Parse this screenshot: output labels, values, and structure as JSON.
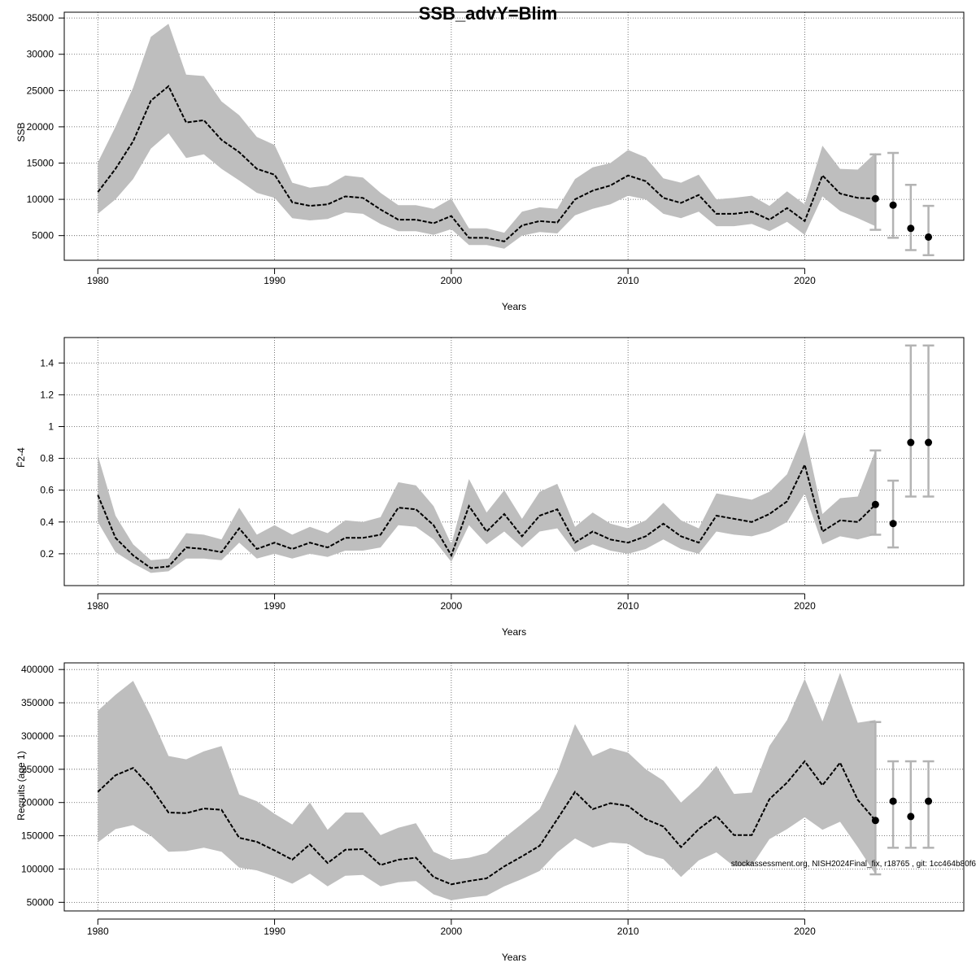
{
  "figure": {
    "title": "SSB_advY=Blim",
    "footnote": "stockassessment.org, NISH2024Final_fix, r18765 , git: 1cc464b80f6"
  },
  "chart_data": [
    {
      "type": "line",
      "xlabel": "Years",
      "ylabel": "SSB",
      "xlim": [
        1978.1,
        2029.0
      ],
      "ylim": [
        1600,
        35800
      ],
      "xticks": [
        1980,
        1990,
        2000,
        2010,
        2020
      ],
      "yticks": [
        5000,
        10000,
        15000,
        20000,
        25000,
        30000,
        35000
      ],
      "grid": true,
      "series": [
        {
          "x": [
            1980,
            1981,
            1982,
            1983,
            1984,
            1985,
            1986,
            1987,
            1988,
            1989,
            1990,
            1991,
            1992,
            1993,
            1994,
            1995,
            1996,
            1997,
            1998,
            1999,
            2000,
            2001,
            2002,
            2003,
            2004,
            2005,
            2006,
            2007,
            2008,
            2009,
            2010,
            2011,
            2012,
            2013,
            2014,
            2015,
            2016,
            2017,
            2018,
            2019,
            2020,
            2021,
            2022,
            2023,
            2024
          ],
          "estimate": [
            11000,
            14200,
            18000,
            23600,
            25600,
            20600,
            20900,
            18200,
            16500,
            14200,
            13400,
            9600,
            9100,
            9300,
            10400,
            10200,
            8600,
            7200,
            7200,
            6700,
            7700,
            4700,
            4700,
            4200,
            6400,
            7000,
            6800,
            10000,
            11200,
            11900,
            13300,
            12500,
            10200,
            9500,
            10600,
            8000,
            8000,
            8300,
            7200,
            8800,
            7000,
            13300,
            10800,
            10200,
            10100
          ],
          "lower": [
            8000,
            10000,
            12800,
            17000,
            19100,
            15700,
            16200,
            14200,
            12600,
            10900,
            10200,
            7400,
            7100,
            7300,
            8200,
            8000,
            6600,
            5600,
            5600,
            5100,
            5900,
            3700,
            3700,
            3200,
            5000,
            5500,
            5300,
            7800,
            8700,
            9300,
            10500,
            10000,
            8000,
            7400,
            8300,
            6300,
            6300,
            6600,
            5600,
            6900,
            5100,
            10400,
            8400,
            7400,
            6300
          ],
          "upper": [
            15100,
            20000,
            25400,
            32400,
            34200,
            27200,
            27000,
            23500,
            21600,
            18600,
            17500,
            12300,
            11600,
            11900,
            13300,
            13000,
            10900,
            9200,
            9200,
            8700,
            10100,
            6000,
            6000,
            5400,
            8300,
            8900,
            8700,
            12800,
            14400,
            15000,
            16800,
            15800,
            12900,
            12300,
            13400,
            10000,
            10200,
            10500,
            9100,
            11100,
            9300,
            17400,
            14200,
            14100,
            16400
          ]
        }
      ],
      "forecast": [
        {
          "x": 2024,
          "median": 10100,
          "lower": 5800,
          "upper": 16200
        },
        {
          "x": 2025,
          "median": 9200,
          "lower": 4700,
          "upper": 16400
        },
        {
          "x": 2026,
          "median": 6000,
          "lower": 3000,
          "upper": 12000
        },
        {
          "x": 2027,
          "median": 4800,
          "lower": 2300,
          "upper": 9100
        }
      ]
    },
    {
      "type": "line",
      "xlabel": "Years",
      "ylabel": "F̄2-4",
      "xlim": [
        1978.1,
        2029.0
      ],
      "ylim": [
        0.0,
        1.56
      ],
      "xticks": [
        1980,
        1990,
        2000,
        2010,
        2020
      ],
      "yticks": [
        0.2,
        0.4,
        0.6,
        0.8,
        1.0,
        1.2,
        1.4
      ],
      "grid": true,
      "series": [
        {
          "x": [
            1980,
            1981,
            1982,
            1983,
            1984,
            1985,
            1986,
            1987,
            1988,
            1989,
            1990,
            1991,
            1992,
            1993,
            1994,
            1995,
            1996,
            1997,
            1998,
            1999,
            2000,
            2001,
            2002,
            2003,
            2004,
            2005,
            2006,
            2007,
            2008,
            2009,
            2010,
            2011,
            2012,
            2013,
            2014,
            2015,
            2016,
            2017,
            2018,
            2019,
            2020,
            2021,
            2022,
            2023,
            2024
          ],
          "estimate": [
            0.57,
            0.3,
            0.19,
            0.11,
            0.12,
            0.24,
            0.23,
            0.21,
            0.36,
            0.23,
            0.27,
            0.23,
            0.27,
            0.24,
            0.3,
            0.3,
            0.32,
            0.49,
            0.48,
            0.38,
            0.19,
            0.5,
            0.34,
            0.45,
            0.31,
            0.44,
            0.48,
            0.27,
            0.34,
            0.29,
            0.27,
            0.31,
            0.39,
            0.31,
            0.27,
            0.44,
            0.42,
            0.4,
            0.45,
            0.53,
            0.76,
            0.34,
            0.41,
            0.4,
            0.51
          ],
          "lower": [
            0.4,
            0.21,
            0.14,
            0.08,
            0.09,
            0.17,
            0.17,
            0.16,
            0.27,
            0.17,
            0.2,
            0.17,
            0.2,
            0.18,
            0.22,
            0.22,
            0.24,
            0.38,
            0.37,
            0.29,
            0.15,
            0.38,
            0.26,
            0.34,
            0.24,
            0.34,
            0.36,
            0.21,
            0.26,
            0.22,
            0.2,
            0.23,
            0.29,
            0.23,
            0.2,
            0.34,
            0.32,
            0.31,
            0.34,
            0.4,
            0.58,
            0.26,
            0.31,
            0.29,
            0.32
          ],
          "upper": [
            0.82,
            0.44,
            0.26,
            0.16,
            0.17,
            0.33,
            0.32,
            0.29,
            0.49,
            0.32,
            0.38,
            0.32,
            0.37,
            0.33,
            0.41,
            0.4,
            0.43,
            0.65,
            0.63,
            0.5,
            0.26,
            0.67,
            0.46,
            0.6,
            0.42,
            0.59,
            0.64,
            0.37,
            0.46,
            0.39,
            0.36,
            0.41,
            0.52,
            0.41,
            0.36,
            0.58,
            0.56,
            0.54,
            0.59,
            0.7,
            0.97,
            0.45,
            0.55,
            0.56,
            0.85
          ]
        }
      ],
      "forecast": [
        {
          "x": 2024,
          "median": 0.51,
          "lower": 0.32,
          "upper": 0.85
        },
        {
          "x": 2025,
          "median": 0.39,
          "lower": 0.24,
          "upper": 0.66
        },
        {
          "x": 2026,
          "median": 0.9,
          "lower": 0.56,
          "upper": 1.51
        },
        {
          "x": 2027,
          "median": 0.9,
          "lower": 0.56,
          "upper": 1.51
        }
      ]
    },
    {
      "type": "line",
      "xlabel": "Years",
      "ylabel": "Recruits (age 1)",
      "xlim": [
        1978.1,
        2029.0
      ],
      "ylim": [
        37000,
        410000
      ],
      "xticks": [
        1980,
        1990,
        2000,
        2010,
        2020
      ],
      "yticks": [
        50000,
        100000,
        150000,
        200000,
        250000,
        300000,
        350000,
        400000
      ],
      "grid": true,
      "series": [
        {
          "x": [
            1980,
            1981,
            1982,
            1983,
            1984,
            1985,
            1986,
            1987,
            1988,
            1989,
            1990,
            1991,
            1992,
            1993,
            1994,
            1995,
            1996,
            1997,
            1998,
            1999,
            2000,
            2001,
            2002,
            2003,
            2004,
            2005,
            2006,
            2007,
            2008,
            2009,
            2010,
            2011,
            2012,
            2013,
            2014,
            2015,
            2016,
            2017,
            2018,
            2019,
            2020,
            2021,
            2022,
            2023,
            2024
          ],
          "estimate": [
            216000,
            241000,
            252000,
            223000,
            185000,
            184000,
            191000,
            189000,
            147000,
            141000,
            128000,
            114000,
            137000,
            109000,
            129000,
            130000,
            106000,
            114000,
            117000,
            88000,
            77000,
            82000,
            86000,
            104000,
            119000,
            135000,
            175000,
            216000,
            190000,
            199000,
            195000,
            175000,
            164000,
            133000,
            160000,
            180000,
            151000,
            151000,
            205000,
            230000,
            262000,
            226000,
            260000,
            204000,
            173000
          ],
          "lower": [
            140000,
            160000,
            166000,
            150000,
            126000,
            127000,
            132000,
            126000,
            102000,
            98000,
            89000,
            78000,
            93000,
            74000,
            90000,
            91000,
            74000,
            80000,
            82000,
            62000,
            53000,
            57000,
            60000,
            74000,
            85000,
            97000,
            125000,
            146000,
            132000,
            140000,
            138000,
            122000,
            115000,
            88000,
            113000,
            125000,
            104000,
            105000,
            145000,
            160000,
            178000,
            159000,
            171000,
            133000,
            92000
          ],
          "upper": [
            338000,
            362000,
            383000,
            330000,
            270000,
            265000,
            277000,
            285000,
            212000,
            202000,
            183000,
            167000,
            200000,
            159000,
            185000,
            185000,
            151000,
            162000,
            169000,
            126000,
            114000,
            117000,
            124000,
            147000,
            168000,
            190000,
            245000,
            318000,
            270000,
            282000,
            275000,
            250000,
            233000,
            200000,
            224000,
            255000,
            213000,
            215000,
            285000,
            324000,
            386000,
            322000,
            395000,
            320000,
            324000
          ]
        }
      ],
      "forecast": [
        {
          "x": 2024,
          "median": 173000,
          "lower": 92000,
          "upper": 321000
        },
        {
          "x": 2025,
          "median": 202000,
          "lower": 132000,
          "upper": 262000
        },
        {
          "x": 2026,
          "median": 179000,
          "lower": 132000,
          "upper": 262000
        },
        {
          "x": 2027,
          "median": 202000,
          "lower": 132000,
          "upper": 262000
        }
      ]
    }
  ]
}
